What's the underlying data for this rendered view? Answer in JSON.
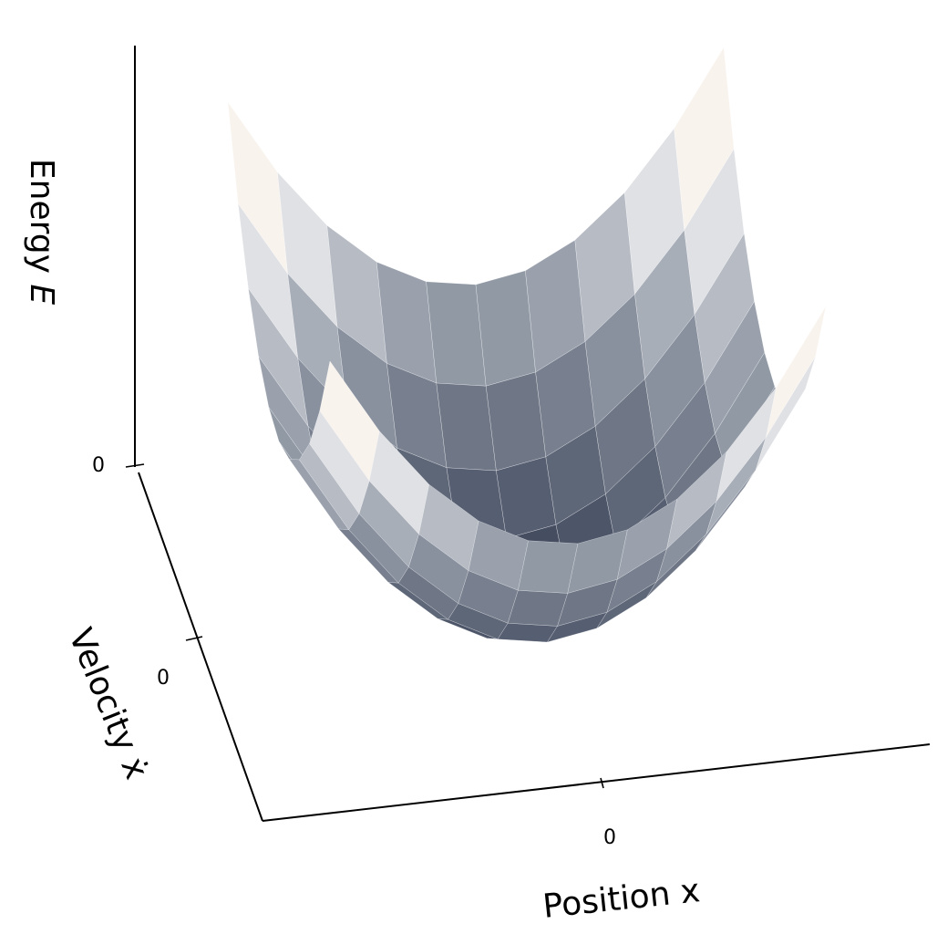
{
  "chart_data": {
    "type": "surface",
    "function": "E = x^2 + xdot^2",
    "x": [
      -1.0,
      -0.8,
      -0.6,
      -0.4,
      -0.2,
      0.0,
      0.2,
      0.4,
      0.6,
      0.8,
      1.0
    ],
    "y": [
      -1.0,
      -0.8,
      -0.6,
      -0.4,
      -0.2,
      0.0,
      0.2,
      0.4,
      0.6,
      0.8,
      1.0
    ],
    "xlabel": "Position x",
    "ylabel": "Velocity ẋ",
    "zlabel_main": "Energy ",
    "zlabel_italic": "E",
    "x_ticks": [
      "0"
    ],
    "y_ticks": [
      "0"
    ],
    "z_ticks": [
      "0"
    ],
    "xlim": [
      -1,
      1
    ],
    "ylim": [
      -1,
      1
    ],
    "zlim": [
      0,
      2
    ],
    "colormap": "bone",
    "grid": false,
    "colors": {
      "low": "#3a4358",
      "mid": "#9aa1ad",
      "white": "#f8f8f9",
      "high": "#fbe9d6",
      "edge": "#ffffff",
      "axis": "#000000"
    }
  }
}
